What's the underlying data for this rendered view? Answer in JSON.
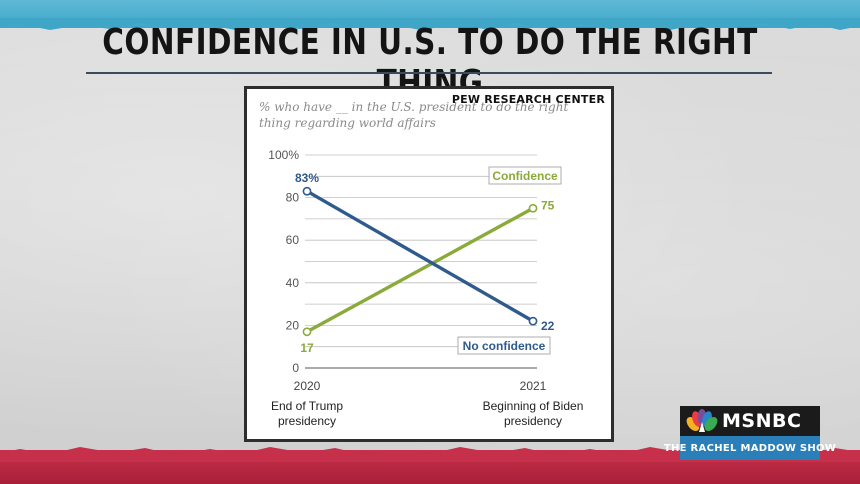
{
  "headline": "CONFIDENCE IN U.S. TO DO THE RIGHT THING",
  "source": "PEW RESEARCH CENTER",
  "logo": {
    "network": "MSNBC",
    "show": "THE RACHEL MADDOW SHOW",
    "icon": "peacock-icon"
  },
  "colors": {
    "confidence": "#8aaa3a",
    "no_confidence": "#2f5a8c",
    "gridline": "#bfbfbf",
    "top_band": "#4fb0d0",
    "bottom_band": "#b8283f"
  },
  "chart_data": {
    "type": "line",
    "subtitle": "% who have __ in the U.S. president to do the right thing regarding world affairs",
    "x": [
      "2020",
      "2021"
    ],
    "x_descriptions": [
      "End of Trump presidency",
      "Beginning of Biden presidency"
    ],
    "ylim": [
      0,
      100
    ],
    "y_ticks": [
      "100%",
      "80",
      "60",
      "40",
      "20",
      "0"
    ],
    "y_tick_values": [
      100,
      80,
      60,
      40,
      20,
      0
    ],
    "grid": true,
    "series": [
      {
        "name": "Confidence",
        "values": [
          17,
          75
        ],
        "value_labels": [
          "17",
          "75"
        ],
        "color": "#8aaa3a"
      },
      {
        "name": "No confidence",
        "values": [
          83,
          22
        ],
        "value_labels": [
          "83%",
          "22"
        ],
        "color": "#2f5a8c"
      }
    ]
  }
}
